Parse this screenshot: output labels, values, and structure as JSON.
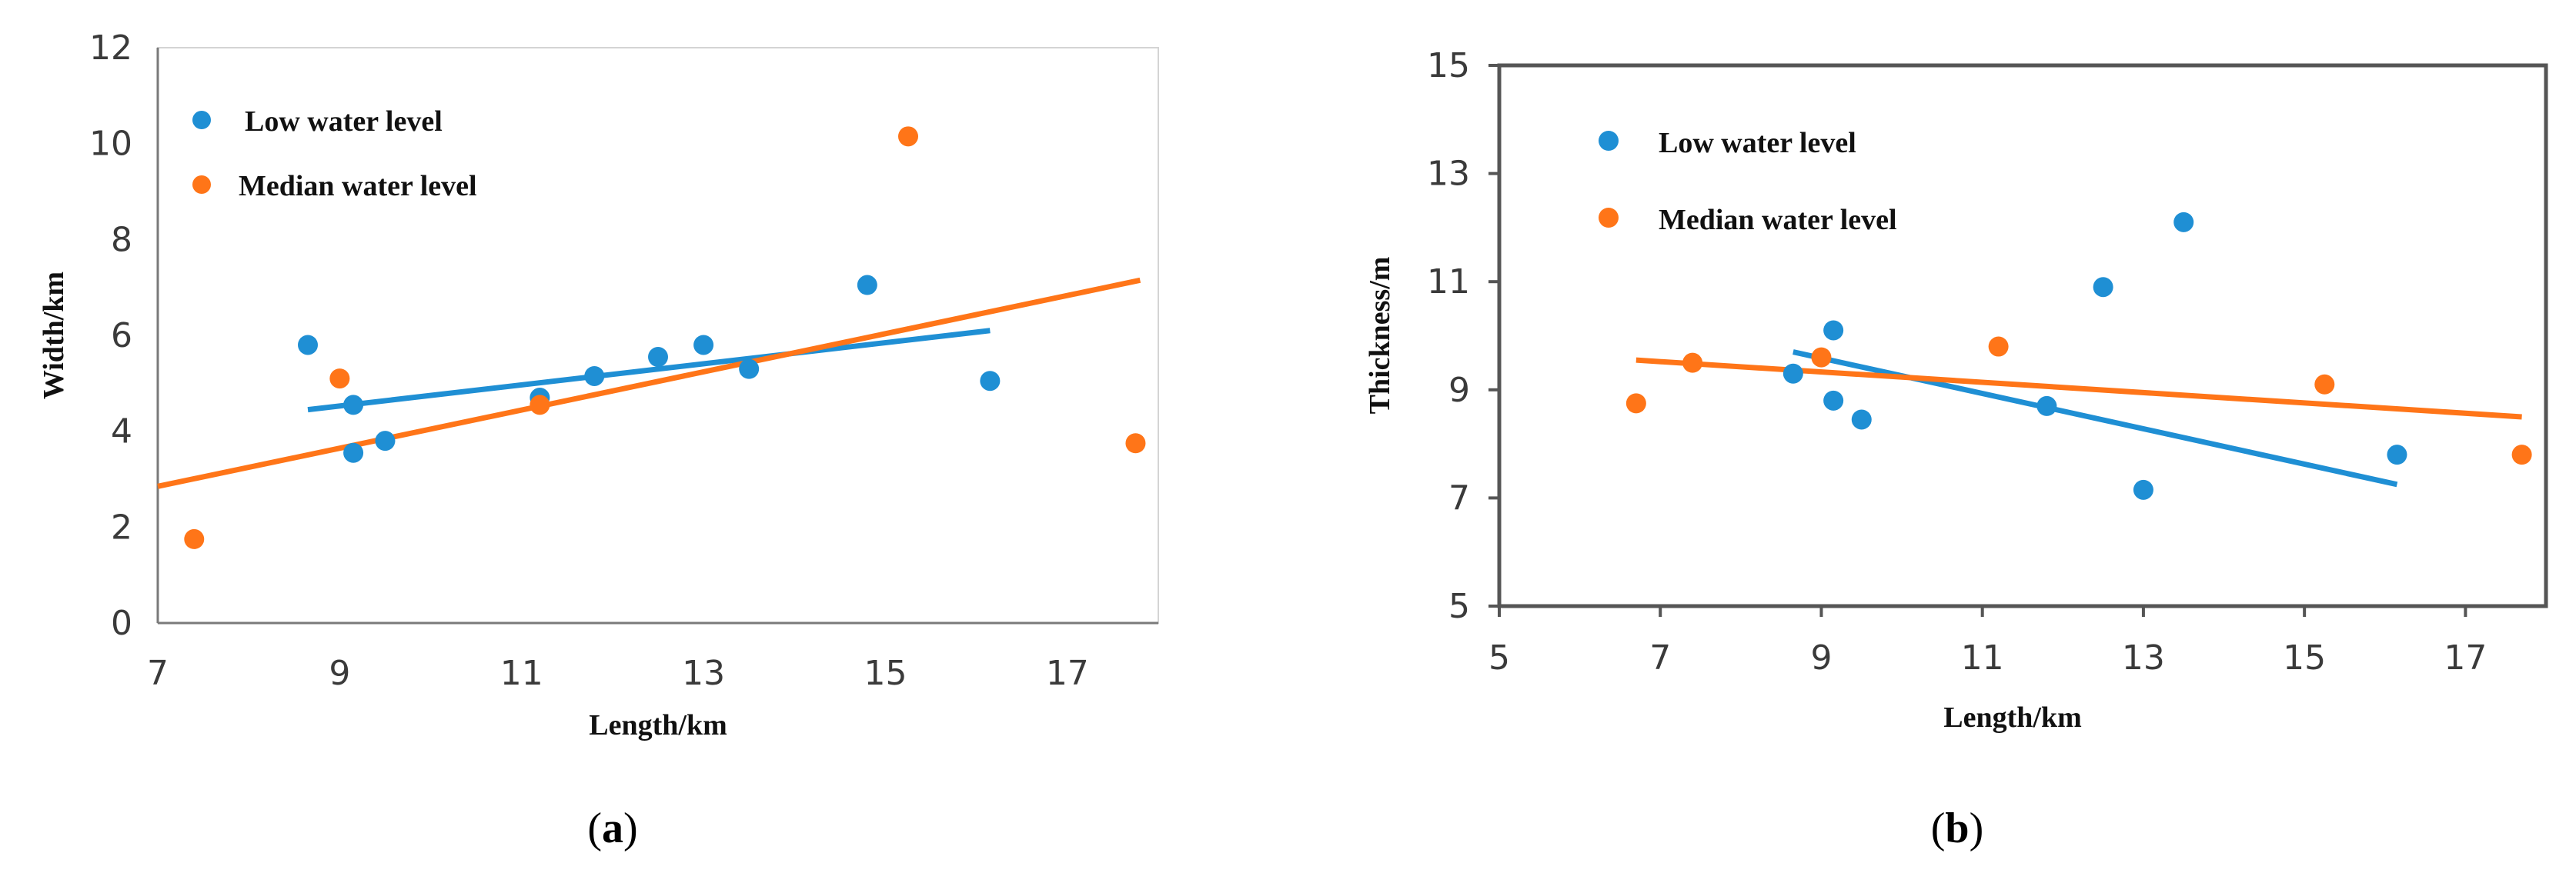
{
  "colors": {
    "low": "#1f8fd4",
    "median": "#ff7518",
    "axis": "#7a7a7a",
    "frame": "#555555"
  },
  "chart_data": [
    {
      "id": "a",
      "type": "scatter",
      "caption": "a",
      "xlabel": "Length/km",
      "ylabel": "Width/km",
      "xlim": [
        7,
        18
      ],
      "ylim": [
        0,
        12
      ],
      "xticks": [
        7,
        9,
        11,
        13,
        15,
        17
      ],
      "yticks": [
        0,
        2,
        4,
        6,
        8,
        10,
        12
      ],
      "legend_position": "top-left",
      "series": [
        {
          "name": "Low water level",
          "color": "#1f8fd4",
          "points": [
            [
              8.65,
              5.8
            ],
            [
              9.15,
              4.55
            ],
            [
              9.15,
              3.55
            ],
            [
              9.5,
              3.8
            ],
            [
              11.2,
              4.7
            ],
            [
              11.8,
              5.15
            ],
            [
              12.5,
              5.55
            ],
            [
              13.0,
              5.8
            ],
            [
              13.5,
              5.3
            ],
            [
              14.8,
              7.05
            ],
            [
              16.15,
              5.05
            ]
          ],
          "trend": [
            [
              8.65,
              4.45
            ],
            [
              16.15,
              6.1
            ]
          ]
        },
        {
          "name": "Median water level",
          "color": "#ff7518",
          "points": [
            [
              7.4,
              1.75
            ],
            [
              9.0,
              5.1
            ],
            [
              11.2,
              4.55
            ],
            [
              15.25,
              10.15
            ],
            [
              17.75,
              3.75
            ]
          ],
          "trend": [
            [
              7.0,
              2.85
            ],
            [
              17.8,
              7.15
            ]
          ]
        }
      ]
    },
    {
      "id": "b",
      "type": "scatter",
      "caption": "b",
      "xlabel": "Length/km",
      "ylabel": "Thickness/m",
      "xlim": [
        5,
        18
      ],
      "ylim": [
        5,
        15
      ],
      "xticks": [
        5,
        7,
        9,
        11,
        13,
        15,
        17
      ],
      "yticks": [
        5,
        7,
        9,
        11,
        13,
        15
      ],
      "legend_position": "top-left",
      "series": [
        {
          "name": "Low water level",
          "color": "#1f8fd4",
          "points": [
            [
              8.65,
              9.3
            ],
            [
              9.15,
              10.1
            ],
            [
              9.15,
              8.8
            ],
            [
              9.5,
              8.45
            ],
            [
              11.8,
              8.7
            ],
            [
              12.5,
              10.9
            ],
            [
              13.0,
              7.15
            ],
            [
              13.5,
              12.1
            ],
            [
              16.15,
              7.8
            ]
          ],
          "trend": [
            [
              8.65,
              9.7
            ],
            [
              16.15,
              7.25
            ]
          ]
        },
        {
          "name": "Median water level",
          "color": "#ff7518",
          "points": [
            [
              6.7,
              8.75
            ],
            [
              7.4,
              9.5
            ],
            [
              9.0,
              9.6
            ],
            [
              11.2,
              9.8
            ],
            [
              15.25,
              9.1
            ],
            [
              17.7,
              7.8
            ]
          ],
          "trend": [
            [
              6.7,
              9.55
            ],
            [
              17.7,
              8.5
            ]
          ]
        }
      ]
    }
  ]
}
